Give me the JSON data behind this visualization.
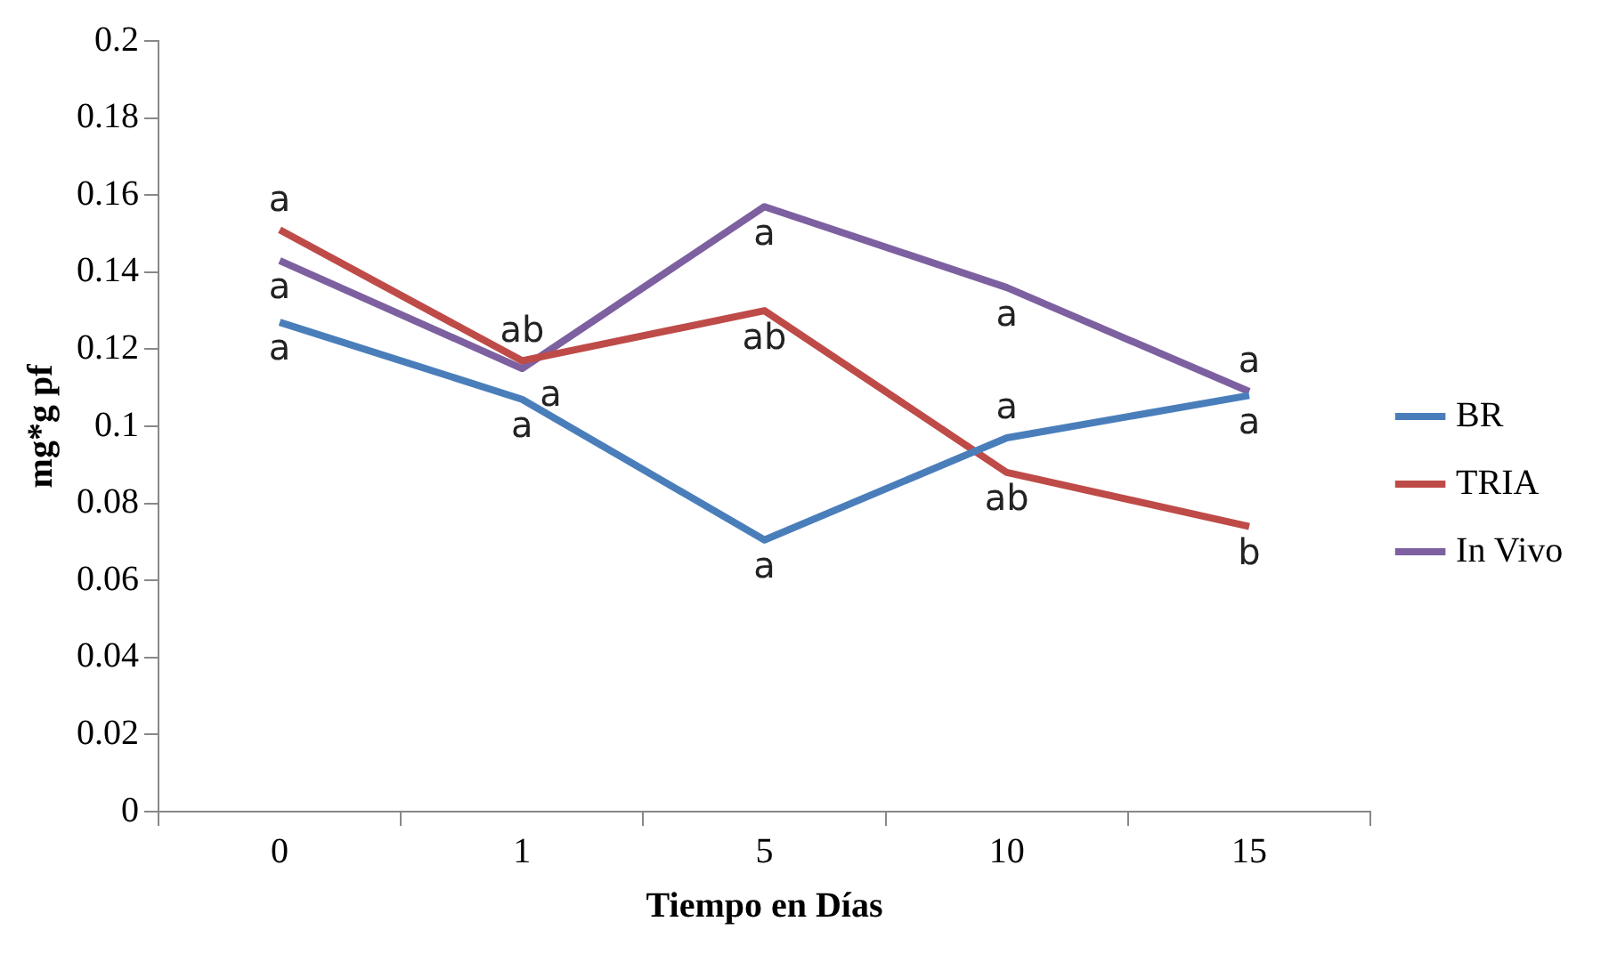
{
  "chart_data": {
    "type": "line",
    "xlabel": "Tiempo en Días",
    "ylabel": "mg*g pf",
    "categories": [
      "0",
      "1",
      "5",
      "10",
      "15"
    ],
    "ylim": [
      0,
      0.2
    ],
    "yticks": [
      0,
      0.02,
      0.04,
      0.06,
      0.08,
      0.1,
      0.12,
      0.14,
      0.16,
      0.18,
      0.2
    ],
    "grid": false,
    "legend": "right",
    "marker": "none",
    "line_style": "solid",
    "series": [
      {
        "name": "BR",
        "color": "#4a7ebb",
        "values": [
          0.127,
          0.107,
          0.0705,
          0.097,
          0.108
        ],
        "value_labels": [
          "a",
          "a",
          "a",
          "a",
          "a"
        ]
      },
      {
        "name": "TRIA",
        "color": "#be4b48",
        "values": [
          0.151,
          0.117,
          0.13,
          0.088,
          0.074
        ],
        "value_labels": [
          "a",
          "ab",
          "ab",
          "ab",
          "b"
        ]
      },
      {
        "name": "In Vivo",
        "color": "#7d60a0",
        "values": [
          0.143,
          0.115,
          0.157,
          0.136,
          0.109
        ],
        "value_labels": [
          "a",
          "a",
          "a",
          "a",
          "a"
        ]
      }
    ]
  }
}
